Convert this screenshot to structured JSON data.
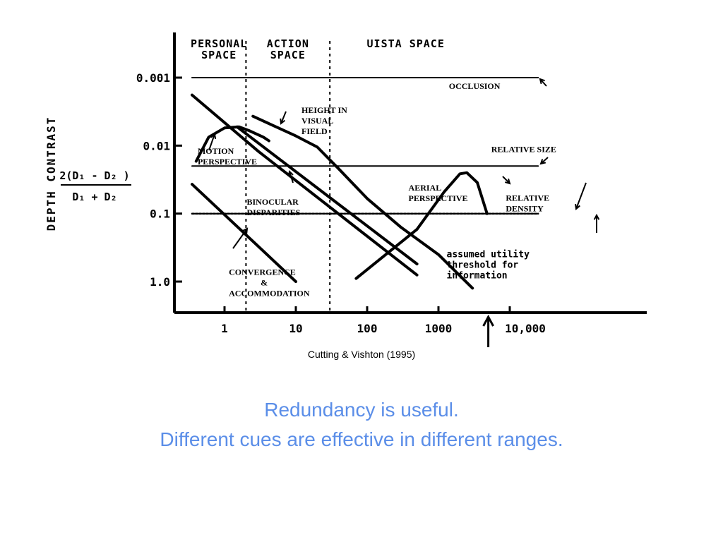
{
  "colors": {
    "ink": "#000000",
    "slide_text": "#5b8ee8"
  },
  "caption": "Cutting & Vishton (1995)",
  "slide_lines": [
    "Redundancy is useful.",
    "Different cues are effective in different ranges."
  ],
  "chart_data": {
    "type": "line",
    "ylabel": "DEPTH CONTRAST",
    "ylabel_formula": {
      "numerator": "2(D₁ - D₂ )",
      "denominator": "D₁ + D₂"
    },
    "x_scale": "log",
    "y_scale": "log",
    "y_inverted": true,
    "xlim": [
      0.35,
      25000
    ],
    "ylim": [
      0.001,
      1.4
    ],
    "x_ticks": [
      {
        "value": 1,
        "label": "1"
      },
      {
        "value": 10,
        "label": "10"
      },
      {
        "value": 100,
        "label": "100"
      },
      {
        "value": 1000,
        "label": "1000"
      },
      {
        "value": 10000,
        "label": "10,000"
      }
    ],
    "y_ticks": [
      {
        "value": 0.001,
        "label": "0.001"
      },
      {
        "value": 0.01,
        "label": "0.01"
      },
      {
        "value": 0.1,
        "label": "0.1"
      },
      {
        "value": 1.0,
        "label": "1.0"
      }
    ],
    "regions": [
      {
        "label": [
          "PERSONAL",
          "SPACE"
        ],
        "from": 0.35,
        "to": 2
      },
      {
        "label": [
          "ACTION",
          "SPACE"
        ],
        "from": 2,
        "to": 30
      },
      {
        "label": [
          "UISTA SPACE"
        ],
        "from": 30,
        "to": 25000
      }
    ],
    "series": [
      {
        "name": "OCCLUSION",
        "points": [
          [
            0.35,
            0.001
          ],
          [
            25000,
            0.001
          ]
        ]
      },
      {
        "name": "RELATIVE SIZE",
        "points": [
          [
            0.35,
            0.02
          ],
          [
            25000,
            0.02
          ]
        ]
      },
      {
        "name": "MOTION PERSPECTIVE",
        "points": [
          [
            0.4,
            0.017
          ],
          [
            0.6,
            0.0075
          ],
          [
            1.0,
            0.0055
          ],
          [
            1.6,
            0.0053
          ],
          [
            2.2,
            0.006
          ],
          [
            3.5,
            0.0075
          ],
          [
            4.2,
            0.0085
          ]
        ]
      },
      {
        "name": "BINOCULAR DISPARITIES",
        "points": [
          [
            0.35,
            0.0018
          ],
          [
            3,
            0.0122
          ],
          [
            500,
            0.8
          ]
        ]
      },
      {
        "name": "BINOCULAR DISPARITIES",
        "points": [
          [
            1.5,
            0.0053
          ],
          [
            500,
            0.55
          ]
        ]
      },
      {
        "name": "HEIGHT IN VISUAL FIELD",
        "points": [
          [
            2.5,
            0.0037
          ],
          [
            10,
            0.0072
          ],
          [
            20,
            0.0105
          ],
          [
            40,
            0.022
          ],
          [
            100,
            0.06
          ],
          [
            300,
            0.16
          ],
          [
            1000,
            0.4
          ],
          [
            3000,
            1.25
          ]
        ]
      },
      {
        "name": "CONVERGENCE & ACCOMMODATION",
        "points": [
          [
            0.35,
            0.037
          ],
          [
            10,
            1.0
          ]
        ]
      },
      {
        "name": "AERIAL PERSPECTIVE",
        "points": [
          [
            70,
            0.9
          ],
          [
            500,
            0.17
          ],
          [
            1200,
            0.048
          ],
          [
            2000,
            0.026
          ],
          [
            2500,
            0.025
          ],
          [
            3500,
            0.035
          ],
          [
            4800,
            0.1
          ]
        ]
      },
      {
        "name": "assumed utility threshold for information",
        "points": [
          [
            0.35,
            0.1
          ],
          [
            25000,
            0.1
          ]
        ]
      }
    ],
    "labels": [
      {
        "text": [
          "OCCLUSION"
        ],
        "x": 1400,
        "y": 0.00147
      },
      {
        "text": [
          "RELATIVE SIZE"
        ],
        "x": 5500,
        "y": 0.0124
      },
      {
        "text": [
          "HEIGHT IN",
          "VISUAL",
          "FIELD"
        ],
        "x": 12,
        "y": 0.0033
      },
      {
        "text": [
          "MOTION",
          "PERSPECTIVE"
        ],
        "x": 0.42,
        "y": 0.0132
      },
      {
        "text": [
          "BINOCULAR",
          "DISPARITIES"
        ],
        "x": 2.05,
        "y": 0.074
      },
      {
        "text": [
          "CONVERGENCE",
          "&",
          "ACCOMMODATION"
        ],
        "x": 1.15,
        "y": 0.8
      },
      {
        "text": [
          "AERIAL",
          "PERSPECTIVE"
        ],
        "x": 380,
        "y": 0.046
      },
      {
        "text": [
          "RELATIVE",
          "DENSITY"
        ],
        "x": 8800,
        "y": 0.065
      },
      {
        "text": [
          "assumed utility",
          "threshold for",
          "information"
        ],
        "x": 1300,
        "y": 0.44
      }
    ],
    "threshold_marker": {
      "x": 5000
    }
  }
}
